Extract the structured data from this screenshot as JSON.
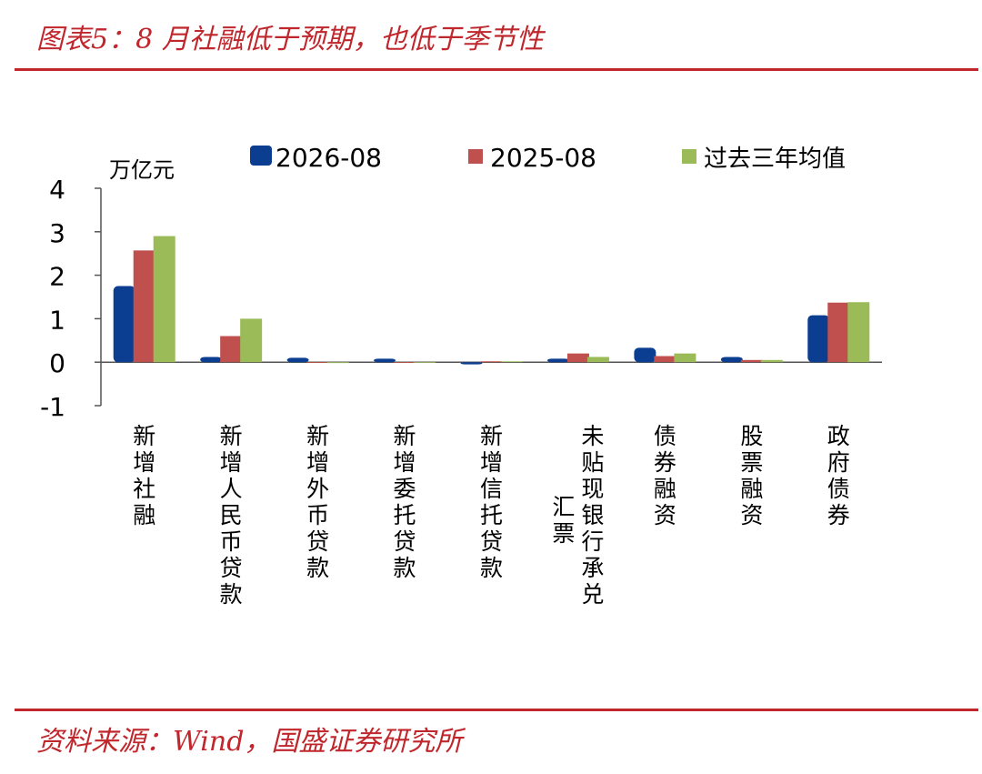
{
  "header": {
    "title": "图表5：8 月社融低于预期，也低于季节性"
  },
  "footer": {
    "source": "资料来源：Wind，国盛证券研究所"
  },
  "colors": {
    "accent": "#c0272d"
  },
  "chart_data": {
    "type": "bar",
    "title": "",
    "xlabel": "",
    "ylabel": "万亿元",
    "ylim": [
      -1,
      4
    ],
    "yticks": [
      4,
      3,
      2,
      1,
      0,
      -1
    ],
    "legend_position": "top",
    "categories": [
      [
        "新",
        "增",
        "社",
        "融"
      ],
      [
        "新",
        "增",
        "人",
        "民",
        "币",
        "贷",
        "款"
      ],
      [
        "新",
        "增",
        "外",
        "币",
        "贷",
        "款"
      ],
      [
        "新",
        "增",
        "委",
        "托",
        "贷",
        "款"
      ],
      [
        "新",
        "增",
        "信",
        "托",
        "贷",
        "款"
      ],
      [
        "未",
        "贴",
        "现",
        "银",
        "行",
        "承",
        "兑",
        "汇",
        "票"
      ],
      [
        "债",
        "券",
        "融",
        "资"
      ],
      [
        "股",
        "票",
        "融",
        "资"
      ],
      [
        "政",
        "府",
        "债",
        "券"
      ]
    ],
    "series": [
      {
        "name": "2026-08",
        "color": "#0b3d91",
        "values": [
          1.75,
          0.12,
          0.1,
          0.08,
          -0.05,
          0.08,
          0.33,
          0.12,
          1.08
        ]
      },
      {
        "name": "2025-08",
        "color": "#c0504d",
        "values": [
          2.57,
          0.6,
          -0.01,
          0.0,
          0.02,
          0.2,
          0.14,
          0.05,
          1.37
        ]
      },
      {
        "name": "过去三年均值",
        "color": "#9bbb59",
        "values": [
          2.9,
          1.0,
          -0.02,
          0.0,
          0.02,
          0.12,
          0.2,
          0.05,
          1.38
        ]
      }
    ]
  }
}
